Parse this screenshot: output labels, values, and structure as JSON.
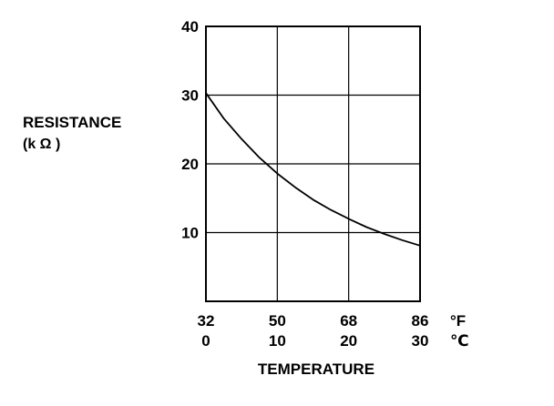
{
  "chart_data": {
    "type": "line",
    "title": "",
    "ylabel": [
      "RESISTANCE",
      "(k Ω )"
    ],
    "xlabel": "TEMPERATURE",
    "x_unit_primary": "°F",
    "x_unit_secondary": "℃",
    "xlim": [
      0,
      30
    ],
    "ylim": [
      0,
      40
    ],
    "x_ticks": [
      {
        "value": 0,
        "label_f": "32",
        "label_c": "0"
      },
      {
        "value": 10,
        "label_f": "50",
        "label_c": "10"
      },
      {
        "value": 20,
        "label_f": "68",
        "label_c": "20"
      },
      {
        "value": 30,
        "label_f": "86",
        "label_c": "30"
      }
    ],
    "y_ticks": [
      {
        "value": 10,
        "label": "10"
      },
      {
        "value": 20,
        "label": "20"
      },
      {
        "value": 30,
        "label": "30"
      },
      {
        "value": 40,
        "label": "40"
      }
    ],
    "grid": true,
    "series": [
      {
        "x": [
          0,
          2.5,
          5,
          7.5,
          10,
          12.5,
          15,
          17.5,
          20,
          22.5,
          25,
          27.5,
          30
        ],
        "y": [
          30.3,
          26.6,
          23.6,
          20.9,
          18.6,
          16.6,
          14.8,
          13.3,
          12.0,
          10.8,
          9.8,
          8.9,
          8.1
        ]
      }
    ]
  }
}
